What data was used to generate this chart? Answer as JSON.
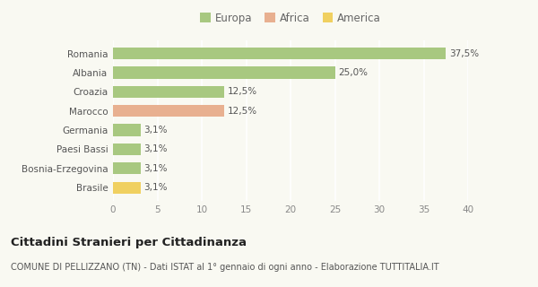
{
  "categories": [
    "Romania",
    "Albania",
    "Croazia",
    "Marocco",
    "Germania",
    "Paesi Bassi",
    "Bosnia-Erzegovina",
    "Brasile"
  ],
  "values": [
    37.5,
    25.0,
    12.5,
    12.5,
    3.1,
    3.1,
    3.1,
    3.1
  ],
  "labels": [
    "37,5%",
    "25,0%",
    "12,5%",
    "12,5%",
    "3,1%",
    "3,1%",
    "3,1%",
    "3,1%"
  ],
  "colors": [
    "#a8c880",
    "#a8c880",
    "#a8c880",
    "#e8b090",
    "#a8c880",
    "#a8c880",
    "#a8c880",
    "#f0d060"
  ],
  "legend_labels": [
    "Europa",
    "Africa",
    "America"
  ],
  "legend_colors": [
    "#a8c880",
    "#e8b090",
    "#f0d060"
  ],
  "xlim": [
    0,
    40
  ],
  "xticks": [
    0,
    5,
    10,
    15,
    20,
    25,
    30,
    35,
    40
  ],
  "title": "Cittadini Stranieri per Cittadinanza",
  "subtitle": "COMUNE DI PELLIZZANO (TN) - Dati ISTAT al 1° gennaio di ogni anno - Elaborazione TUTTITALIA.IT",
  "bg_color": "#f9f9f2",
  "grid_color": "#ffffff",
  "title_fontsize": 9.5,
  "subtitle_fontsize": 7,
  "bar_label_fontsize": 7.5,
  "ytick_fontsize": 7.5,
  "xtick_fontsize": 7.5,
  "legend_fontsize": 8.5,
  "bar_height": 0.62
}
